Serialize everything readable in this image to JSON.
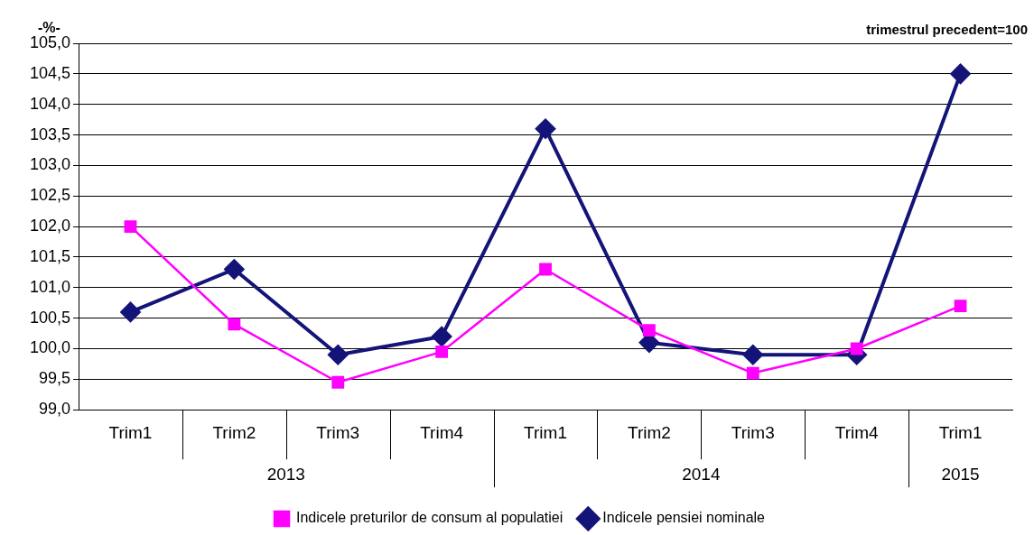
{
  "chart_data": {
    "type": "line",
    "ylabel": "-%-",
    "subtitle": "trimestrul precedent=100",
    "categories": [
      "Trim1",
      "Trim2",
      "Trim3",
      "Trim4",
      "Trim1",
      "Trim2",
      "Trim3",
      "Trim4",
      "Trim1"
    ],
    "annotations": [
      "2013",
      "2014",
      "2015"
    ],
    "series": [
      {
        "name": "Indicele pensiei nominale",
        "color": "#141478",
        "marker": "diamond",
        "values": [
          100.6,
          101.3,
          99.9,
          100.2,
          103.6,
          100.1,
          99.9,
          99.9,
          104.5
        ]
      },
      {
        "name": "Indicele preturilor de consum al populatiei",
        "color": "#ff00ff",
        "marker": "square",
        "values": [
          102.0,
          100.4,
          99.45,
          99.95,
          101.3,
          100.3,
          99.6,
          100.0,
          100.7
        ]
      }
    ],
    "ylim": [
      99,
      105
    ],
    "yticks": [
      {
        "value": 99,
        "label": "99,0"
      },
      {
        "value": 99.5,
        "label": "99,5"
      },
      {
        "value": 100,
        "label": "100,0"
      },
      {
        "value": 100.5,
        "label": "100,5"
      },
      {
        "value": 101,
        "label": "101,0"
      },
      {
        "value": 101.5,
        "label": "101,5"
      },
      {
        "value": 102,
        "label": "102,0"
      },
      {
        "value": 102.5,
        "label": "102,5"
      },
      {
        "value": 103,
        "label": "103,0"
      },
      {
        "value": 103.5,
        "label": "103,5"
      },
      {
        "value": 104,
        "label": "104,0"
      },
      {
        "value": 104.5,
        "label": "104,5"
      },
      {
        "value": 105,
        "label": "105,0"
      }
    ],
    "grid": "y",
    "legend": "bottom",
    "line_style": "solid"
  }
}
